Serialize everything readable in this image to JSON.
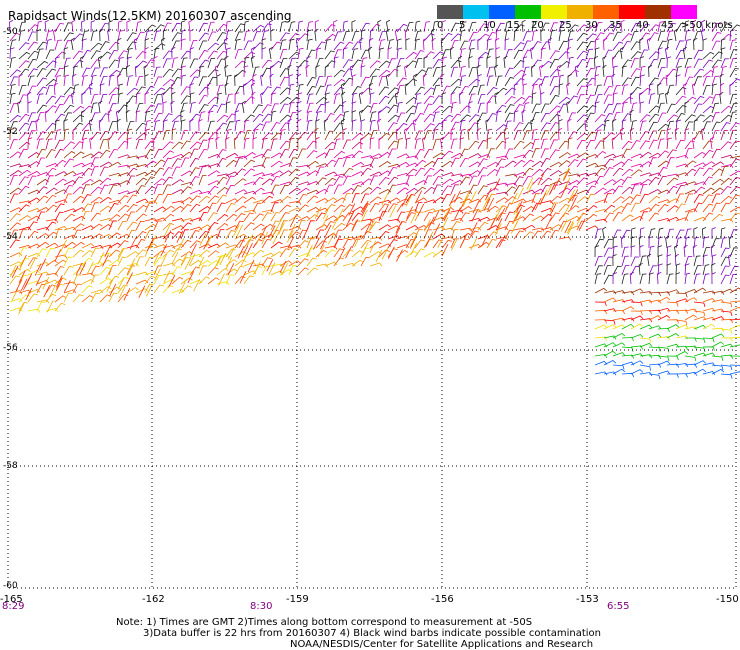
{
  "title": "Rapidsact Winds(12.5KM) 20160307 ascending",
  "colorbar": {
    "labels": [
      "0",
      "5",
      "10",
      "15",
      "20",
      "25",
      "30",
      "35",
      "40",
      "45",
      ">50 knots"
    ],
    "colors": [
      "#555555",
      "#00c0f0",
      "#0060ff",
      "#00c000",
      "#f0f000",
      "#f0b000",
      "#ff6000",
      "#ff0000",
      "#a03000",
      "#ff00ff",
      "#8000c0"
    ]
  },
  "map": {
    "lon_ticks": [
      "-165",
      "-162",
      "-159",
      "-156",
      "-153",
      "-150"
    ],
    "lat_ticks": [
      "-50",
      "-52",
      "-54",
      "-56",
      "-58",
      "-60"
    ],
    "time_labels": [
      "8:29",
      "8:30",
      "6:55"
    ]
  },
  "notes": {
    "line1": "Note: 1) Times are GMT 2)Times along bottom correspond to measurement at -50S",
    "line2": "3)Data buffer is 22 hrs from 20160307 4) Black wind barbs indicate possible contamination",
    "line3": "NOAA/NESDIS/Center for Satellite Applications and Research"
  },
  "colors": {
    "grid": "#000000",
    "time_label": "#800080"
  }
}
